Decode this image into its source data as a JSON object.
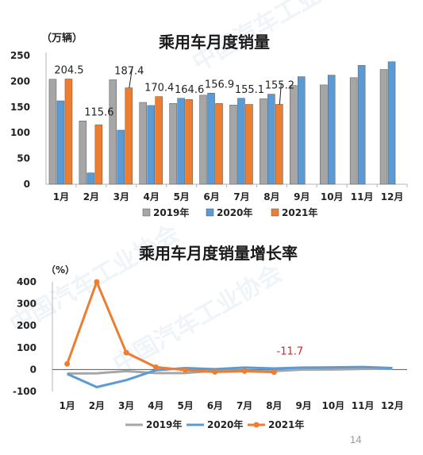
{
  "page_number": "14",
  "colors": {
    "s2019": "#a6a6a6",
    "s2020": "#5b9bd5",
    "s2021": "#ed7d31",
    "axis": "#b4b4b4",
    "annotation_red": "#e02020"
  },
  "chart_data": [
    {
      "type": "bar",
      "title": "乘用车月度销量",
      "ylabel": "（万辆）",
      "ylim": [
        0,
        250
      ],
      "yticks": [
        "0",
        "50",
        "100",
        "150",
        "200",
        "250"
      ],
      "categories": [
        "1月",
        "2月",
        "3月",
        "4月",
        "5月",
        "6月",
        "7月",
        "8月",
        "9月",
        "10月",
        "11月",
        "12月"
      ],
      "series": [
        {
          "name": "2019年",
          "values": [
            204,
            123,
            203,
            159,
            157,
            173,
            154,
            166,
            192,
            193,
            207,
            223
          ]
        },
        {
          "name": "2020年",
          "values": [
            162,
            22,
            105,
            153,
            167,
            177,
            167,
            175,
            209,
            212,
            231,
            238
          ]
        },
        {
          "name": "2021年",
          "values": [
            204.5,
            115.6,
            187.4,
            170.4,
            164.6,
            156.9,
            155.1,
            155.2,
            null,
            null,
            null,
            null
          ]
        }
      ],
      "data_labels": [
        "204.5",
        "115.6",
        "187.4",
        "170.4",
        "164.6",
        "156.9",
        "155.1",
        "155.2"
      ],
      "legend_position": "bottom",
      "grid": false
    },
    {
      "type": "line",
      "title": "乘用车月度销量增长率",
      "ylabel": "（%）",
      "ylim": [
        -100,
        400
      ],
      "yticks": [
        "-100",
        "0",
        "100",
        "200",
        "300",
        "400"
      ],
      "categories": [
        "1月",
        "2月",
        "3月",
        "4月",
        "5月",
        "6月",
        "7月",
        "8月",
        "9月",
        "10月",
        "11月",
        "12月"
      ],
      "series": [
        {
          "name": "2019年",
          "values": [
            -18,
            -17,
            -7,
            -16,
            -16,
            -5,
            -5,
            -7,
            0,
            0,
            3,
            4
          ]
        },
        {
          "name": "2020年",
          "values": [
            -20,
            -80,
            -48,
            -3,
            7,
            2,
            9,
            5,
            9,
            10,
            12,
            7
          ]
        },
        {
          "name": "2021年",
          "values": [
            26,
            400,
            77,
            11,
            -2,
            -11,
            -7,
            -11.7,
            null,
            null,
            null,
            null
          ]
        }
      ],
      "annotation": "-11.7",
      "legend_position": "bottom",
      "grid": false
    }
  ]
}
